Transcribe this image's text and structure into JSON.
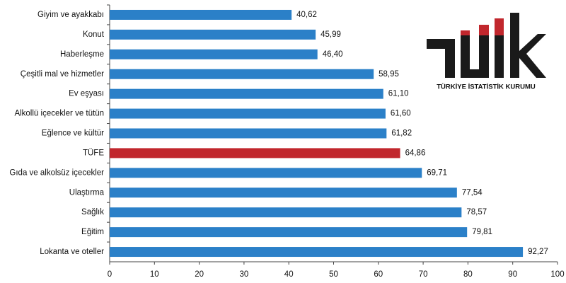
{
  "logo": {
    "text": "TÜRKİYE İSTATİSTİK KURUMU"
  },
  "chart_data": {
    "type": "bar",
    "orientation": "horizontal",
    "categories": [
      "Giyim ve ayakkabı",
      "Konut",
      "Haberleşme",
      "Çeşitli mal ve hizmetler",
      "Ev eşyası",
      "Alkollü içecekler ve tütün",
      "Eğlence ve kültür",
      "TÜFE",
      "Gıda ve alkolsüz içecekler",
      "Ulaştırma",
      "Sağlık",
      "Eğitim",
      "Lokanta ve oteller"
    ],
    "values": [
      40.62,
      45.99,
      46.4,
      58.95,
      61.1,
      61.6,
      61.82,
      64.86,
      69.71,
      77.54,
      78.57,
      79.81,
      92.27
    ],
    "value_labels": [
      "40,62",
      "45,99",
      "46,40",
      "58,95",
      "61,10",
      "61,60",
      "61,82",
      "64,86",
      "69,71",
      "77,54",
      "78,57",
      "79,81",
      "92,27"
    ],
    "colors": [
      "#2b80c8",
      "#2b80c8",
      "#2b80c8",
      "#2b80c8",
      "#2b80c8",
      "#2b80c8",
      "#2b80c8",
      "#c1272d",
      "#2b80c8",
      "#2b80c8",
      "#2b80c8",
      "#2b80c8",
      "#2b80c8"
    ],
    "xlim": [
      0,
      100
    ],
    "xticks": [
      0,
      10,
      20,
      30,
      40,
      50,
      60,
      70,
      80,
      90,
      100
    ]
  }
}
